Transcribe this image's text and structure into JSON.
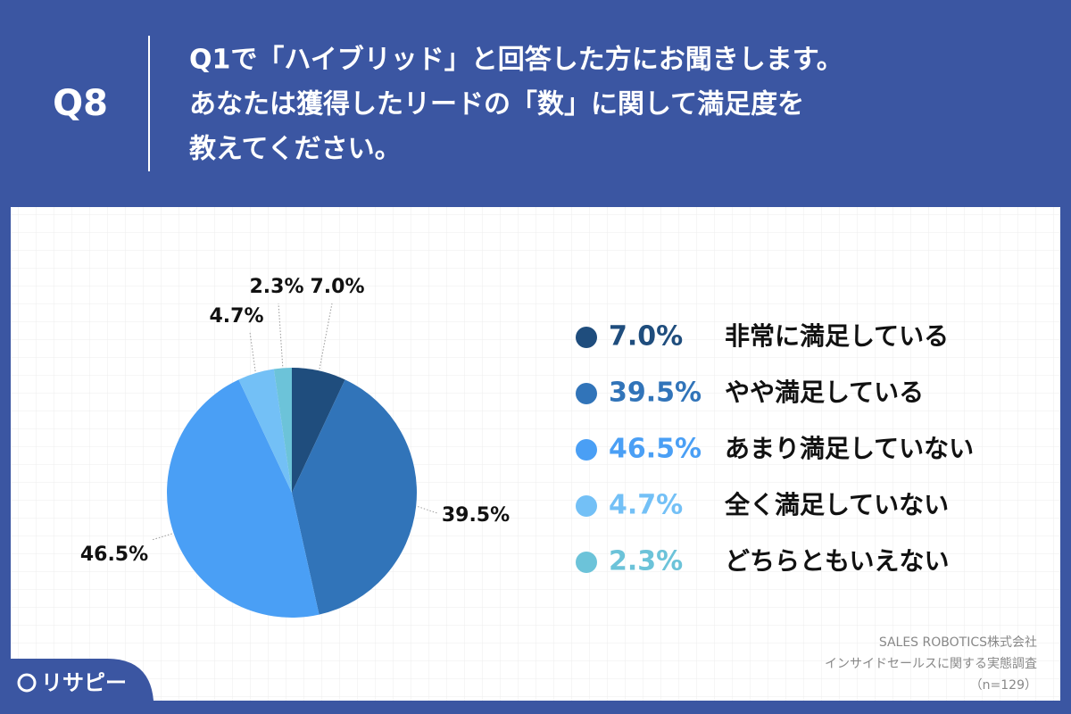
{
  "question": {
    "number": "Q8",
    "lines": [
      "Q1で「ハイブリッド」と回答した方にお聞きします。",
      "あなたは獲得したリードの「数」に関して満足度を",
      "教えてください。"
    ]
  },
  "chart_data": {
    "type": "pie",
    "categories": [
      "非常に満足している",
      "やや満足している",
      "あまり満足していない",
      "全く満足していない",
      "どちらともいえない"
    ],
    "values": [
      7.0,
      39.5,
      46.5,
      4.7,
      2.3
    ],
    "value_labels": [
      "7.0%",
      "39.5%",
      "46.5%",
      "4.7%",
      "2.3%"
    ],
    "colors": [
      "#1f4d7d",
      "#3174b9",
      "#4a9ff5",
      "#73c0f6",
      "#6cc3d9"
    ]
  },
  "source": [
    "SALES ROBOTICS株式会社",
    "インサイドセールスに関する実態調査",
    "（n=129）"
  ],
  "logo": "リサピー"
}
